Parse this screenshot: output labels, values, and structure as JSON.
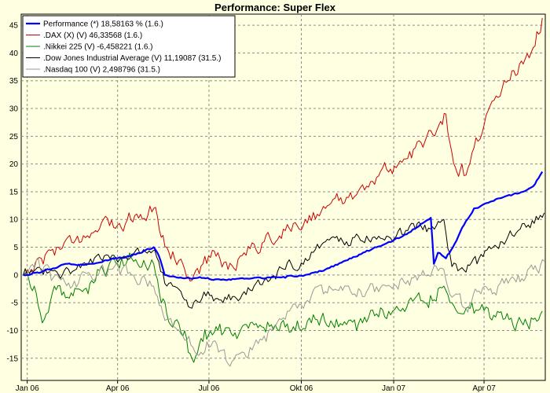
{
  "chart_data": {
    "type": "line",
    "title": "Performance: Super Flex",
    "xlabel": "",
    "ylabel": "",
    "ylim": [
      -19,
      47
    ],
    "xlim": [
      "2005-12-26",
      "2007-06-01"
    ],
    "y_ticks": [
      -15,
      -10,
      -5,
      0,
      5,
      10,
      15,
      20,
      25,
      30,
      35,
      40,
      45
    ],
    "x_ticks": [
      {
        "date": "2006-01-01",
        "label": "Jan 06"
      },
      {
        "date": "2006-04-01",
        "label": "Apr 06"
      },
      {
        "date": "2006-07-01",
        "label": "Jul 06"
      },
      {
        "date": "2006-10-01",
        "label": "Okt 06"
      },
      {
        "date": "2007-01-01",
        "label": "Jan 07"
      },
      {
        "date": "2007-04-01",
        "label": "Apr 07"
      }
    ],
    "grid": true,
    "legend_position": "top-left",
    "background": "#ffffe1",
    "series": [
      {
        "name": "Performance (*) 18,58163 % (1.6.)",
        "color": "#0000ff",
        "width": 2.2,
        "noise": 0.15,
        "points": [
          [
            "2005-12-28",
            0
          ],
          [
            "2006-01-15",
            0.5
          ],
          [
            "2006-02-10",
            2
          ],
          [
            "2006-03-05",
            2
          ],
          [
            "2006-04-01",
            3
          ],
          [
            "2006-04-25",
            4
          ],
          [
            "2006-05-07",
            5
          ],
          [
            "2006-05-12",
            3.5
          ],
          [
            "2006-05-18",
            0
          ],
          [
            "2006-06-01",
            -0.5
          ],
          [
            "2006-06-20",
            -0.5
          ],
          [
            "2006-07-15",
            -0.8
          ],
          [
            "2006-08-15",
            -0.5
          ],
          [
            "2006-09-15",
            -0.5
          ],
          [
            "2006-10-05",
            0
          ],
          [
            "2006-10-25",
            1
          ],
          [
            "2006-11-20",
            3
          ],
          [
            "2006-12-15",
            5
          ],
          [
            "2007-01-10",
            7
          ],
          [
            "2007-02-05",
            10
          ],
          [
            "2007-02-07",
            10.3
          ],
          [
            "2007-02-10",
            2
          ],
          [
            "2007-02-14",
            4
          ],
          [
            "2007-02-22",
            3
          ],
          [
            "2007-03-01",
            5
          ],
          [
            "2007-03-12",
            9
          ],
          [
            "2007-03-22",
            12
          ],
          [
            "2007-04-05",
            13
          ],
          [
            "2007-04-20",
            14
          ],
          [
            "2007-05-10",
            15
          ],
          [
            "2007-05-20",
            16
          ],
          [
            "2007-05-29",
            18.6
          ]
        ]
      },
      {
        "name": ".DAX (X) (V) 46,33568 (1.6.)",
        "color": "#cc0000",
        "width": 1,
        "noise": 1.2,
        "points": [
          [
            "2005-12-28",
            0
          ],
          [
            "2006-01-15",
            3
          ],
          [
            "2006-02-01",
            5
          ],
          [
            "2006-02-20",
            7
          ],
          [
            "2006-03-10",
            8
          ],
          [
            "2006-04-01",
            9
          ],
          [
            "2006-04-20",
            11
          ],
          [
            "2006-05-07",
            12
          ],
          [
            "2006-05-20",
            5
          ],
          [
            "2006-06-05",
            2
          ],
          [
            "2006-06-14",
            -1
          ],
          [
            "2006-06-25",
            2
          ],
          [
            "2006-07-10",
            4
          ],
          [
            "2006-07-20",
            1
          ],
          [
            "2006-08-05",
            4
          ],
          [
            "2006-08-25",
            6
          ],
          [
            "2006-09-15",
            8
          ],
          [
            "2006-10-05",
            10
          ],
          [
            "2006-10-25",
            12
          ],
          [
            "2006-11-15",
            14
          ],
          [
            "2006-12-05",
            16
          ],
          [
            "2006-12-25",
            19
          ],
          [
            "2007-01-15",
            21
          ],
          [
            "2007-02-01",
            24
          ],
          [
            "2007-02-15",
            27
          ],
          [
            "2007-02-22",
            29
          ],
          [
            "2007-02-28",
            22
          ],
          [
            "2007-03-05",
            18.5
          ],
          [
            "2007-03-10",
            20
          ],
          [
            "2007-03-14",
            18
          ],
          [
            "2007-03-20",
            22
          ],
          [
            "2007-04-01",
            27
          ],
          [
            "2007-04-15",
            32
          ],
          [
            "2007-04-25",
            35
          ],
          [
            "2007-05-10",
            38
          ],
          [
            "2007-05-20",
            41
          ],
          [
            "2007-05-29",
            46.3
          ]
        ]
      },
      {
        "name": ".Nikkei 225 (V) -6,458221 (1.6.)",
        "color": "#008000",
        "width": 1,
        "noise": 1.3,
        "points": [
          [
            "2005-12-28",
            0
          ],
          [
            "2006-01-08",
            -2
          ],
          [
            "2006-01-18",
            -8
          ],
          [
            "2006-01-28",
            -2
          ],
          [
            "2006-02-10",
            -4
          ],
          [
            "2006-02-25",
            -3
          ],
          [
            "2006-03-10",
            -1
          ],
          [
            "2006-04-01",
            2
          ],
          [
            "2006-04-15",
            3
          ],
          [
            "2006-05-07",
            2
          ],
          [
            "2006-05-20",
            -7
          ],
          [
            "2006-06-05",
            -11
          ],
          [
            "2006-06-14",
            -15
          ],
          [
            "2006-06-25",
            -12
          ],
          [
            "2006-07-10",
            -10
          ],
          [
            "2006-07-25",
            -11
          ],
          [
            "2006-08-15",
            -9
          ],
          [
            "2006-09-05",
            -9
          ],
          [
            "2006-09-25",
            -10
          ],
          [
            "2006-10-15",
            -8
          ],
          [
            "2006-11-05",
            -8
          ],
          [
            "2006-11-25",
            -10
          ],
          [
            "2006-12-15",
            -7
          ],
          [
            "2007-01-10",
            -6
          ],
          [
            "2007-02-01",
            -5
          ],
          [
            "2007-02-20",
            -2
          ],
          [
            "2007-02-28",
            -5
          ],
          [
            "2007-03-10",
            -7
          ],
          [
            "2007-03-20",
            -5
          ],
          [
            "2007-04-05",
            -6
          ],
          [
            "2007-04-20",
            -8
          ],
          [
            "2007-05-10",
            -9
          ],
          [
            "2007-05-20",
            -8
          ],
          [
            "2007-05-29",
            -6.5
          ]
        ]
      },
      {
        "name": ".Dow Jones Industrial Average (V) 11,19087 (31.5.)",
        "color": "#000000",
        "width": 1,
        "noise": 0.9,
        "points": [
          [
            "2005-12-28",
            0
          ],
          [
            "2006-01-15",
            1
          ],
          [
            "2006-02-05",
            0
          ],
          [
            "2006-02-25",
            2
          ],
          [
            "2006-03-15",
            3
          ],
          [
            "2006-04-05",
            3
          ],
          [
            "2006-04-25",
            4
          ],
          [
            "2006-05-08",
            4.5
          ],
          [
            "2006-05-20",
            -2
          ],
          [
            "2006-06-05",
            -4
          ],
          [
            "2006-06-14",
            -6
          ],
          [
            "2006-06-30",
            -3
          ],
          [
            "2006-07-15",
            -5
          ],
          [
            "2006-08-05",
            -3
          ],
          [
            "2006-08-25",
            -1
          ],
          [
            "2006-09-15",
            1
          ],
          [
            "2006-10-05",
            3
          ],
          [
            "2006-10-25",
            6
          ],
          [
            "2006-11-15",
            6
          ],
          [
            "2006-12-05",
            7
          ],
          [
            "2006-12-25",
            7
          ],
          [
            "2007-01-15",
            8
          ],
          [
            "2007-02-01",
            9
          ],
          [
            "2007-02-20",
            10
          ],
          [
            "2007-02-28",
            1.5
          ],
          [
            "2007-03-14",
            0.5
          ],
          [
            "2007-03-25",
            2
          ],
          [
            "2007-04-10",
            5
          ],
          [
            "2007-04-25",
            7
          ],
          [
            "2007-05-15",
            9
          ],
          [
            "2007-05-31",
            11.2
          ]
        ]
      },
      {
        "name": ".Nasdaq 100 (V) 2,498796 (31.5.)",
        "color": "#999999",
        "width": 1,
        "noise": 1.1,
        "points": [
          [
            "2005-12-28",
            0
          ],
          [
            "2006-01-12",
            3
          ],
          [
            "2006-01-25",
            -1
          ],
          [
            "2006-02-15",
            -2
          ],
          [
            "2006-03-05",
            0
          ],
          [
            "2006-03-25",
            1
          ],
          [
            "2006-04-15",
            0
          ],
          [
            "2006-05-05",
            -2
          ],
          [
            "2006-05-20",
            -8
          ],
          [
            "2006-06-05",
            -11
          ],
          [
            "2006-06-15",
            -13
          ],
          [
            "2006-07-05",
            -12
          ],
          [
            "2006-07-20",
            -16
          ],
          [
            "2006-08-05",
            -14
          ],
          [
            "2006-08-25",
            -11
          ],
          [
            "2006-09-15",
            -8
          ],
          [
            "2006-10-05",
            -5
          ],
          [
            "2006-10-25",
            -3
          ],
          [
            "2006-11-15",
            -2
          ],
          [
            "2006-12-05",
            -3
          ],
          [
            "2006-12-25",
            -2
          ],
          [
            "2007-01-15",
            -1
          ],
          [
            "2007-02-01",
            0
          ],
          [
            "2007-02-20",
            1
          ],
          [
            "2007-02-28",
            -4
          ],
          [
            "2007-03-14",
            -6
          ],
          [
            "2007-03-25",
            -3
          ],
          [
            "2007-04-15",
            -2
          ],
          [
            "2007-05-05",
            0
          ],
          [
            "2007-05-20",
            1
          ],
          [
            "2007-05-31",
            2.5
          ]
        ]
      }
    ]
  }
}
